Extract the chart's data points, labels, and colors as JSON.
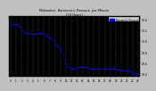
{
  "title": "Milwaukee  Barometric Pressure  per Minute",
  "title2": "(24 Hours)",
  "bg_color": "#c0c0c0",
  "plot_bg_color": "#000000",
  "dot_color": "#0000ff",
  "dot_size": 0.8,
  "grid_color": "#555555",
  "legend_color": "#0000ff",
  "legend_label": "Barometric Pressure",
  "xlim": [
    -0.3,
    23.3
  ],
  "ylim": [
    29.35,
    30.45
  ],
  "y_ticks": [
    29.4,
    29.6,
    29.8,
    30.0,
    30.2,
    30.4
  ],
  "y_tick_labels": [
    "29.4",
    "29.6",
    "29.8",
    "30.0",
    "30.2",
    "30.4"
  ],
  "title_color": "#000000",
  "tick_color": "#000000",
  "spine_color": "#000000",
  "data_x": [
    0,
    0.17,
    0.33,
    0.5,
    0.67,
    0.83,
    1.0,
    1.17,
    1.33,
    1.5,
    1.67,
    1.83,
    2.0,
    2.17,
    2.33,
    2.5,
    2.67,
    2.83,
    3.0,
    3.17,
    3.33,
    3.5,
    3.67,
    3.83,
    4.0,
    4.17,
    4.33,
    4.5,
    4.67,
    4.83,
    5.0,
    5.17,
    5.33,
    5.5,
    5.67,
    5.83,
    6.0,
    6.17,
    6.33,
    6.5,
    6.67,
    6.83,
    7.0,
    7.17,
    7.33,
    7.5,
    7.67,
    7.83,
    8.0,
    8.17,
    8.33,
    8.5,
    8.67,
    8.83,
    9.0,
    9.17,
    9.33,
    9.5,
    9.67,
    9.83,
    10.0,
    10.17,
    10.33,
    10.5,
    10.67,
    10.83,
    11.0,
    11.17,
    11.33,
    11.5,
    11.67,
    11.83,
    12.0,
    12.17,
    12.33,
    12.5,
    12.67,
    12.83,
    13.0,
    13.17,
    13.33,
    13.5,
    13.67,
    13.83,
    14.0,
    14.17,
    14.33,
    14.5,
    14.67,
    14.83,
    15.0,
    15.17,
    15.33,
    15.5,
    15.67,
    15.83,
    16.0,
    16.17,
    16.33,
    16.5,
    16.67,
    16.83,
    17.0,
    17.17,
    17.33,
    17.5,
    17.67,
    17.83,
    18.0,
    18.17,
    18.33,
    18.5,
    18.67,
    18.83,
    19.0,
    19.17,
    19.33,
    19.5,
    19.67,
    19.83,
    20.0,
    20.17,
    20.33,
    20.5,
    20.67,
    20.83,
    21.0,
    21.17,
    21.33,
    21.5,
    21.67,
    21.83,
    22.0,
    22.17,
    22.33,
    22.5,
    22.67,
    22.83,
    23.0
  ],
  "data_y": [
    30.28,
    30.29,
    30.29,
    30.3,
    30.3,
    30.31,
    30.31,
    30.31,
    30.31,
    30.28,
    30.26,
    30.26,
    30.22,
    30.18,
    30.17,
    30.16,
    30.15,
    30.15,
    30.14,
    30.14,
    30.14,
    30.13,
    30.13,
    30.13,
    30.13,
    30.13,
    30.12,
    30.12,
    30.13,
    30.14,
    30.15,
    30.15,
    30.14,
    30.14,
    30.14,
    30.13,
    30.13,
    30.12,
    30.11,
    30.1,
    30.09,
    30.08,
    30.07,
    30.06,
    30.05,
    30.03,
    30.01,
    29.99,
    29.97,
    29.94,
    29.92,
    29.9,
    29.88,
    29.85,
    29.83,
    29.8,
    29.77,
    29.73,
    29.68,
    29.64,
    29.6,
    29.57,
    29.55,
    29.53,
    29.52,
    29.51,
    29.5,
    29.5,
    29.5,
    29.5,
    29.5,
    29.51,
    29.51,
    29.52,
    29.52,
    29.52,
    29.52,
    29.52,
    29.52,
    29.52,
    29.52,
    29.52,
    29.52,
    29.52,
    29.51,
    29.51,
    29.5,
    29.5,
    29.5,
    29.5,
    29.5,
    29.5,
    29.5,
    29.49,
    29.49,
    29.49,
    29.49,
    29.49,
    29.49,
    29.49,
    29.49,
    29.49,
    29.49,
    29.49,
    29.49,
    29.49,
    29.49,
    29.49,
    29.49,
    29.49,
    29.49,
    29.49,
    29.49,
    29.49,
    29.48,
    29.48,
    29.48,
    29.48,
    29.48,
    29.48,
    29.47,
    29.47,
    29.47,
    29.47,
    29.47,
    29.47,
    29.46,
    29.46,
    29.46,
    29.45,
    29.45,
    29.44,
    29.43,
    29.43,
    29.42,
    29.42,
    29.41,
    29.4,
    29.39
  ]
}
